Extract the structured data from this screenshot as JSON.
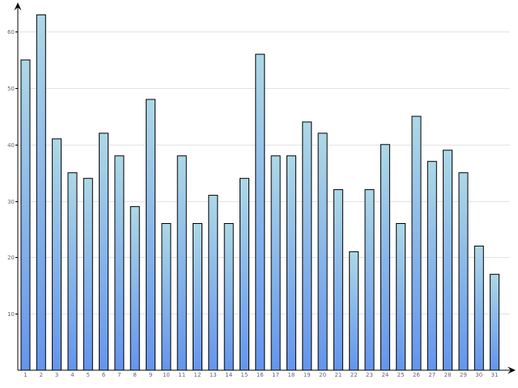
{
  "chart_data": {
    "type": "bar",
    "title": "",
    "xlabel": "",
    "ylabel": "",
    "categories": [
      "1",
      "2",
      "3",
      "4",
      "5",
      "6",
      "7",
      "8",
      "9",
      "10",
      "11",
      "12",
      "13",
      "14",
      "15",
      "16",
      "17",
      "18",
      "19",
      "20",
      "21",
      "22",
      "23",
      "24",
      "25",
      "26",
      "27",
      "28",
      "29",
      "30",
      "31"
    ],
    "values": [
      55,
      63,
      41,
      35,
      34,
      42,
      38,
      29,
      48,
      26,
      38,
      26,
      31,
      26,
      34,
      56,
      38,
      38,
      44,
      42,
      32,
      21,
      32,
      40,
      26,
      45,
      37,
      39,
      35,
      22,
      17
    ],
    "ylim": [
      0,
      63
    ],
    "yticks": [
      10,
      20,
      30,
      40,
      50,
      60
    ],
    "ytick_labels": [
      "10",
      "20",
      "30",
      "40",
      "50",
      "60"
    ],
    "grid": true,
    "legend": "none",
    "colors": {
      "bar_top": "#add8e6",
      "bar_bottom": "#6495ed",
      "bar_stroke": "#000000",
      "grid": "#e3e3e3",
      "axis": "#000000"
    }
  }
}
